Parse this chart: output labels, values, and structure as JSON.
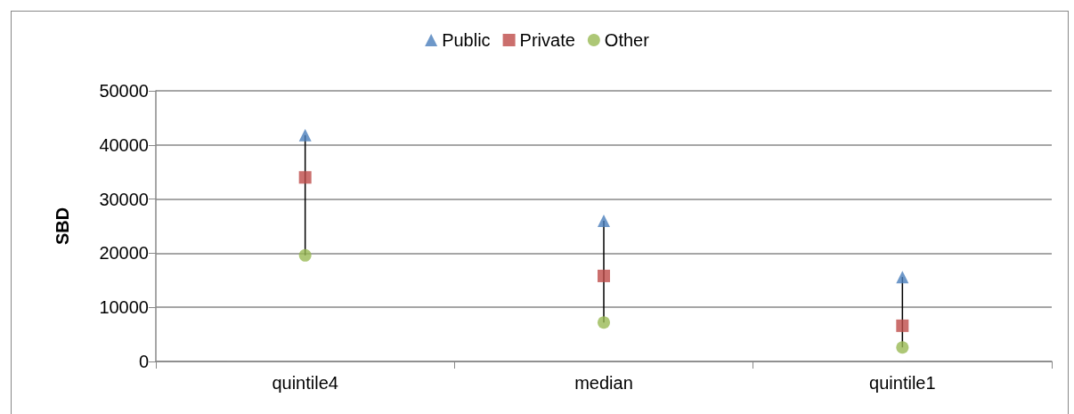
{
  "chart_data": {
    "type": "scatter",
    "ylabel": "SBD",
    "categories": [
      "quintile4",
      "median",
      "quintile1"
    ],
    "series": [
      {
        "name": "Public",
        "color": "#4a7ebb",
        "marker": "triangle",
        "values": [
          41800,
          26000,
          15600
        ]
      },
      {
        "name": "Private",
        "color": "#be4b48",
        "marker": "square",
        "values": [
          34000,
          15800,
          6600
        ]
      },
      {
        "name": "Other",
        "color": "#98b954",
        "marker": "circle",
        "values": [
          19600,
          7200,
          2600
        ]
      }
    ],
    "ylim": [
      0,
      50000
    ],
    "yticks": [
      0,
      10000,
      20000,
      30000,
      40000,
      50000
    ],
    "grid": "y",
    "legend": "top"
  }
}
